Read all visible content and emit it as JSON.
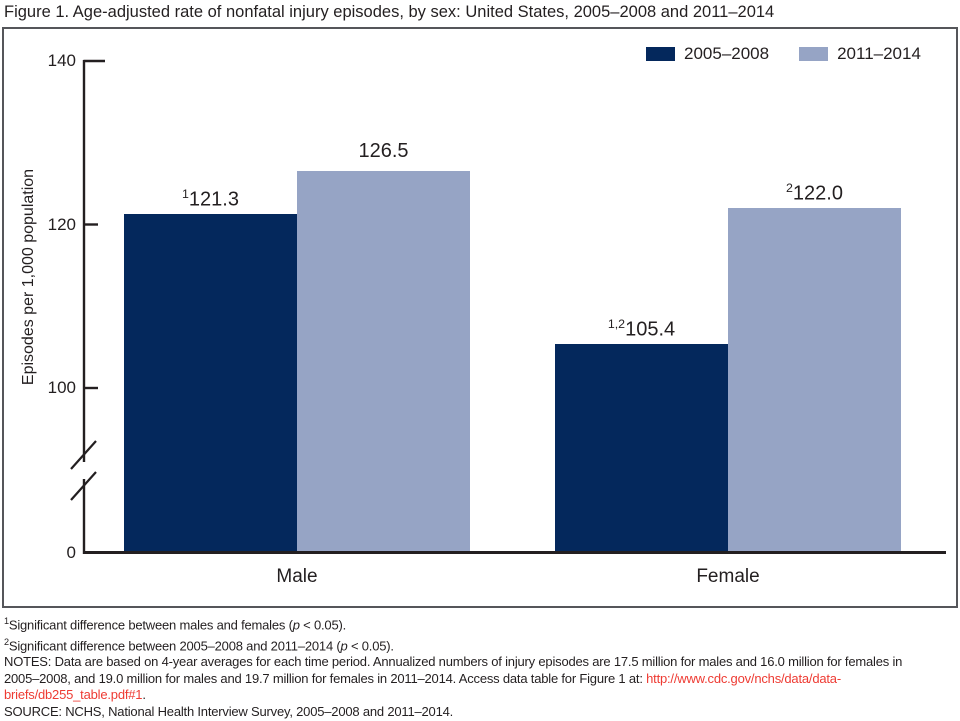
{
  "title": "Figure 1. Age-adjusted rate of nonfatal injury episodes, by sex: United States, 2005–2008 and 2011–2014",
  "chart_data": {
    "type": "bar",
    "title": "Figure 1. Age-adjusted rate of nonfatal injury episodes, by sex: United States, 2005–2008 and 2011–2014",
    "categories": [
      "Male",
      "Female"
    ],
    "series": [
      {
        "name": "2005–2008",
        "color": "#04285c",
        "values": [
          121.3,
          105.4
        ],
        "label_sups": [
          "1",
          "1,2"
        ]
      },
      {
        "name": "2011–2014",
        "color": "#96a4c5",
        "values": [
          126.5,
          122.0
        ],
        "label_sups": [
          "",
          "2"
        ]
      }
    ],
    "xlabel": "",
    "ylabel": "Episodes per 1,000 population",
    "yticks": [
      0,
      100,
      120,
      140
    ],
    "ylim": [
      0,
      140
    ],
    "axis_break_between": [
      0,
      100
    ],
    "grid": false,
    "legend_position": "top-right"
  },
  "footnotes": {
    "lines": [
      {
        "name": "footnote-1",
        "segments": [
          {
            "t": "1",
            "s": "sup"
          },
          {
            "t": "Significant difference between males and females (",
            "s": ""
          },
          {
            "t": "p",
            "s": "i"
          },
          {
            "t": " < 0.05).",
            "s": ""
          }
        ]
      },
      {
        "name": "footnote-2",
        "segments": [
          {
            "t": "2",
            "s": "sup"
          },
          {
            "t": "Significant difference between 2005–2008 and 2011–2014 (",
            "s": ""
          },
          {
            "t": "p",
            "s": "i"
          },
          {
            "t": " < 0.05).",
            "s": ""
          }
        ]
      },
      {
        "name": "notes-line-1",
        "segments": [
          {
            "t": "NOTES: Data are based on 4-year averages for each time period. Annualized numbers of injury episodes are 17.5 million for males and 16.0 million for females in",
            "s": ""
          }
        ]
      },
      {
        "name": "notes-line-2",
        "segments": [
          {
            "t": "2005–2008, and 19.0 million for males and 19.7 million for females in 2011–2014. Access data table for Figure 1 at: ",
            "s": ""
          },
          {
            "t": "http://www.cdc.gov/nchs/data/data-",
            "s": "link"
          }
        ]
      },
      {
        "name": "notes-line-3",
        "segments": [
          {
            "t": "briefs/db255_table.pdf#1",
            "s": "link"
          },
          {
            "t": ".",
            "s": ""
          }
        ]
      },
      {
        "name": "source-line",
        "segments": [
          {
            "t": "SOURCE: NCHS, National Health Interview Survey, 2005–2008 and 2011–2014.",
            "s": ""
          }
        ]
      }
    ]
  },
  "colors": {
    "bar_2005_2008": "#04285c",
    "bar_2011_2014": "#96a4c5",
    "link_red": "#ee3b33",
    "text": "#231f20",
    "axis": "#231f20",
    "frame": "#55565a"
  }
}
